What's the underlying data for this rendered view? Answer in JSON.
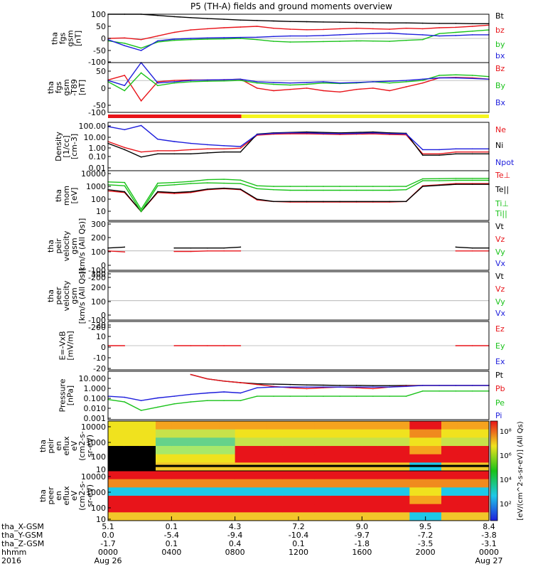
{
  "title": "P5 (TH-A) fields and ground moments overview",
  "chart_data": [
    {
      "type": "line",
      "panel_label": [
        "tha",
        "fgs",
        "gsm",
        "[nT]"
      ],
      "yticks": [
        "100",
        "50",
        "0",
        "-50",
        "-100"
      ],
      "ylim": [
        -100,
        100
      ],
      "legend": [
        {
          "name": "Bt",
          "color": "#000000"
        },
        {
          "name": "bz",
          "color": "#e8141a"
        },
        {
          "name": "by",
          "color": "#19c219"
        },
        {
          "name": "bx",
          "color": "#1e1edc"
        }
      ],
      "series": [
        {
          "name": "Bt",
          "values": [
            100,
            100,
            100,
            95,
            90,
            86,
            82,
            79,
            76,
            74,
            72,
            70,
            69,
            68,
            67,
            66,
            65,
            64,
            64,
            63,
            62,
            62,
            61,
            61
          ]
        },
        {
          "name": "bz",
          "values": [
            0,
            2,
            -5,
            10,
            25,
            35,
            40,
            44,
            47,
            50,
            42,
            38,
            36,
            37,
            40,
            42,
            40,
            38,
            42,
            40,
            44,
            46,
            50,
            55
          ]
        },
        {
          "name": "by",
          "values": [
            -10,
            -20,
            -40,
            -15,
            -8,
            -5,
            -3,
            -2,
            0,
            -5,
            -12,
            -15,
            -14,
            -13,
            -12,
            -10,
            -11,
            -12,
            -8,
            -5,
            20,
            25,
            30,
            35
          ]
        },
        {
          "name": "bx",
          "values": [
            -5,
            -30,
            -50,
            -10,
            -3,
            0,
            2,
            3,
            4,
            5,
            8,
            10,
            10,
            12,
            15,
            18,
            20,
            22,
            18,
            15,
            10,
            12,
            15,
            15
          ]
        }
      ]
    },
    {
      "type": "line",
      "panel_label": [
        "tha",
        "fgs",
        "gsm",
        "-T89",
        "[nT]"
      ],
      "yticks": [
        "50",
        "0",
        "-50",
        "-100"
      ],
      "ylim": [
        -125,
        70
      ],
      "legend": [
        {
          "name": "Bz",
          "color": "#e8141a"
        },
        {
          "name": "By",
          "color": "#19c219"
        },
        {
          "name": "Bx",
          "color": "#1e1edc"
        }
      ],
      "series": [
        {
          "name": "Bz",
          "values": [
            2,
            20,
            -80,
            -5,
            0,
            2,
            2,
            3,
            5,
            -30,
            -40,
            -35,
            -30,
            -40,
            -45,
            -35,
            -30,
            -40,
            -25,
            -10,
            10,
            12,
            10,
            5
          ]
        },
        {
          "name": "By",
          "values": [
            -5,
            -40,
            30,
            -20,
            -10,
            -5,
            -3,
            -2,
            0,
            -10,
            -15,
            -18,
            -15,
            -10,
            -12,
            -10,
            -5,
            -10,
            -5,
            0,
            20,
            22,
            20,
            15
          ]
        },
        {
          "name": "Bx",
          "values": [
            0,
            -20,
            100,
            -10,
            -5,
            0,
            2,
            3,
            5,
            -5,
            -8,
            -10,
            -8,
            -5,
            -10,
            -8,
            -5,
            -3,
            0,
            5,
            10,
            10,
            8,
            5
          ]
        }
      ]
    },
    {
      "type": "line",
      "scale": "log",
      "panel_label": [
        "Density",
        "[1/cc]",
        "[cm-3]"
      ],
      "yticks": [
        "100.00",
        "10.00",
        "1.00",
        "0.10",
        "0.01"
      ],
      "ylim": [
        0.005,
        200
      ],
      "legend": [
        {
          "name": "Ne",
          "color": "#e8141a"
        },
        {
          "name": "Ni",
          "color": "#000000"
        },
        {
          "name": "Npot",
          "color": "#1e1edc"
        }
      ],
      "series": [
        {
          "name": "Ne",
          "values": [
            3,
            0.8,
            0.3,
            0.4,
            0.4,
            0.5,
            0.6,
            0.6,
            0.7,
            12,
            15,
            16,
            16,
            15,
            14,
            15,
            16,
            14,
            13,
            0.2,
            0.2,
            0.3,
            0.3,
            0.3
          ]
        },
        {
          "name": "Ni",
          "values": [
            2,
            0.5,
            0.1,
            0.2,
            0.2,
            0.2,
            0.25,
            0.3,
            0.3,
            15,
            20,
            22,
            24,
            22,
            20,
            22,
            24,
            20,
            18,
            0.15,
            0.15,
            0.2,
            0.2,
            0.2
          ]
        },
        {
          "name": "Npot",
          "values": [
            80,
            40,
            100,
            5,
            3,
            2,
            1.5,
            1.2,
            1,
            14,
            18,
            20,
            20,
            18,
            17,
            18,
            20,
            17,
            16,
            0.5,
            0.5,
            0.6,
            0.6,
            0.6
          ]
        }
      ]
    },
    {
      "type": "line",
      "scale": "log",
      "panel_label": [
        "tha",
        "mom",
        "[eV]"
      ],
      "yticks": [
        "10000",
        "1000",
        "100",
        "10"
      ],
      "ylim": [
        2,
        15000
      ],
      "legend": [
        {
          "name": "Te⊥",
          "color": "#e8141a"
        },
        {
          "name": "Te||",
          "color": "#000000"
        },
        {
          "name": "Ti⊥",
          "color": "#19c219"
        },
        {
          "name": "Ti||",
          "color": "#19c219"
        }
      ],
      "series": [
        {
          "name": "Te⊥",
          "values": [
            400,
            300,
            10,
            300,
            250,
            300,
            500,
            600,
            500,
            80,
            60,
            55,
            55,
            55,
            55,
            55,
            55,
            55,
            60,
            1000,
            1200,
            1500,
            1500,
            1500
          ]
        },
        {
          "name": "Te||",
          "values": [
            500,
            350,
            10,
            350,
            300,
            350,
            550,
            650,
            550,
            90,
            60,
            60,
            60,
            60,
            60,
            60,
            60,
            60,
            60,
            900,
            1100,
            1300,
            1300,
            1300
          ]
        },
        {
          "name": "Ti⊥",
          "values": [
            1200,
            1000,
            10,
            1000,
            1200,
            1500,
            1700,
            1600,
            1500,
            600,
            500,
            450,
            450,
            450,
            450,
            450,
            450,
            450,
            500,
            2500,
            2500,
            2700,
            2700,
            2700
          ]
        },
        {
          "name": "Ti||",
          "values": [
            2000,
            1800,
            15,
            1600,
            1800,
            2200,
            3000,
            3200,
            2800,
            1000,
            900,
            900,
            900,
            900,
            900,
            900,
            900,
            900,
            900,
            3500,
            3600,
            3800,
            3800,
            3800
          ]
        }
      ]
    },
    {
      "type": "line",
      "panel_label": [
        "tha",
        "peir",
        "velocity",
        "gsm",
        "[km/s (All Qs)]"
      ],
      "yticks": [
        "300",
        "200",
        "100",
        "0",
        "-100",
        "-200"
      ],
      "ylim": [
        -200,
        300
      ],
      "legend": [
        {
          "name": "Vt",
          "color": "#000000"
        },
        {
          "name": "Vz",
          "color": "#e8141a"
        },
        {
          "name": "Vy",
          "color": "#19c219"
        },
        {
          "name": "Vx",
          "color": "#1e1edc"
        }
      ],
      "series": [
        {
          "name": "Vt",
          "values": [
            30,
            40,
            null,
            null,
            30,
            30,
            30,
            30,
            40,
            null,
            null,
            null,
            null,
            null,
            null,
            null,
            null,
            null,
            null,
            null,
            null,
            40,
            30,
            30
          ]
        },
        {
          "name": "Vz",
          "values": [
            0,
            -10,
            null,
            null,
            -5,
            -5,
            0,
            0,
            0,
            null,
            null,
            null,
            null,
            null,
            null,
            null,
            null,
            null,
            null,
            null,
            null,
            0,
            0,
            0
          ]
        }
      ]
    },
    {
      "type": "line",
      "panel_label": [
        "tha",
        "peer",
        "velocity",
        "gsm",
        "[km/s (All Qs)]"
      ],
      "yticks": [
        "300",
        "200",
        "100",
        "0",
        "-100",
        "-200"
      ],
      "ylim": [
        -200,
        300
      ],
      "legend": [
        {
          "name": "Vt",
          "color": "#000000"
        },
        {
          "name": "Vz",
          "color": "#e8141a"
        },
        {
          "name": "Vy",
          "color": "#19c219"
        },
        {
          "name": "Vx",
          "color": "#1e1edc"
        }
      ],
      "series": []
    },
    {
      "type": "line",
      "panel_label": [
        "E=-VxB",
        "[mV/m]"
      ],
      "yticks": [
        "20",
        "10",
        "0",
        "-10",
        "-20"
      ],
      "ylim": [
        -20,
        20
      ],
      "legend": [
        {
          "name": "Ez",
          "color": "#e8141a"
        },
        {
          "name": "Ey",
          "color": "#19c219"
        },
        {
          "name": "Ex",
          "color": "#1e1edc"
        }
      ],
      "series": [
        {
          "name": "Ez",
          "values": [
            0,
            0,
            null,
            null,
            0,
            0,
            0,
            0,
            0,
            null,
            null,
            null,
            null,
            null,
            null,
            null,
            null,
            null,
            null,
            null,
            null,
            0,
            0,
            0
          ]
        }
      ]
    },
    {
      "type": "line",
      "scale": "log",
      "panel_label": [
        "Pressure",
        "[nPa]"
      ],
      "yticks": [
        "10.000",
        "1.000",
        "0.100",
        "0.010",
        "0.001"
      ],
      "ylim": [
        0.0007,
        20
      ],
      "legend": [
        {
          "name": "Pt",
          "color": "#000000"
        },
        {
          "name": "Pb",
          "color": "#e8141a"
        },
        {
          "name": "Pe",
          "color": "#19c219"
        },
        {
          "name": "Pi",
          "color": "#1e1edc"
        }
      ],
      "series": [
        {
          "name": "Pt",
          "values": [
            null,
            null,
            null,
            null,
            null,
            10,
            4,
            2.5,
            1.8,
            1.4,
            1.3,
            1.2,
            1.1,
            1.05,
            1.0,
            1.0,
            0.95,
            0.95,
            1.0,
            1.0,
            1.0,
            1.0,
            1.0,
            1.0
          ]
        },
        {
          "name": "Pb",
          "values": [
            null,
            null,
            null,
            null,
            null,
            10,
            4,
            2.5,
            1.8,
            1.2,
            0.8,
            0.6,
            0.5,
            0.6,
            0.7,
            0.6,
            0.5,
            0.7,
            0.9,
            1.0,
            1.0,
            1.0,
            1.0,
            1.0
          ]
        },
        {
          "name": "Pe",
          "values": [
            0.05,
            0.03,
            0.005,
            0.01,
            0.02,
            0.03,
            0.04,
            0.04,
            0.04,
            0.1,
            0.1,
            0.1,
            0.1,
            0.1,
            0.1,
            0.1,
            0.1,
            0.1,
            0.1,
            0.3,
            0.3,
            0.3,
            0.3,
            0.3
          ]
        },
        {
          "name": "Pi",
          "values": [
            0.1,
            0.08,
            0.04,
            0.07,
            0.1,
            0.15,
            0.2,
            0.25,
            0.2,
            0.6,
            0.7,
            0.7,
            0.7,
            0.7,
            0.7,
            0.7,
            0.7,
            0.7,
            0.8,
            1.0,
            1.0,
            1.0,
            1.0,
            1.0
          ]
        }
      ]
    },
    {
      "type": "heatmap",
      "panel_label": [
        "tha",
        "peir",
        "en",
        "eflux",
        "eV",
        "(cm2-s-",
        "sr-eV)"
      ],
      "yticks": [
        "10000",
        "1000",
        "100",
        "10"
      ]
    },
    {
      "type": "heatmap",
      "panel_label": [
        "tha",
        "peer",
        "en",
        "eflux",
        "eV",
        "(cm2-s-",
        "sr-eV)"
      ],
      "yticks": [
        "10000",
        "1000",
        "100",
        "10"
      ]
    }
  ],
  "colorbar": {
    "label": "[eV/(cm^2-s-sr-eV)] (All Qs)",
    "ticks": [
      "10⁸",
      "10⁶",
      "10⁴",
      "10²"
    ]
  },
  "xaxis": {
    "row_labels": [
      "tha_X-GSM",
      "tha_Y-GSM",
      "tha_Z-GSM",
      "hhmm",
      "2016"
    ],
    "ticks": [
      {
        "x": "5.1",
        "y": "0.0",
        "z": "-1.7",
        "hhmm": "0000",
        "date": "Aug 26"
      },
      {
        "x": "0.1",
        "y": "-5.4",
        "z": "0.1",
        "hhmm": "0400",
        "date": ""
      },
      {
        "x": "4.3",
        "y": "-9.4",
        "z": "0.4",
        "hhmm": "0800",
        "date": ""
      },
      {
        "x": "7.2",
        "y": "-10.4",
        "z": "0.1",
        "hhmm": "1200",
        "date": ""
      },
      {
        "x": "9.0",
        "y": "-9.7",
        "z": "-1.8",
        "hhmm": "1600",
        "date": ""
      },
      {
        "x": "9.5",
        "y": "-7.2",
        "z": "-3.5",
        "hhmm": "2000",
        "date": ""
      },
      {
        "x": "8.4",
        "y": "-3.8",
        "z": "-3.1",
        "hhmm": "0000",
        "date": "Aug 27"
      }
    ]
  },
  "colors": {
    "bx": "#1e1edc",
    "by": "#19c219",
    "bz": "#e8141a",
    "bt": "#000000",
    "region_red": "#e8141a",
    "region_yellow": "#f5f51e"
  }
}
